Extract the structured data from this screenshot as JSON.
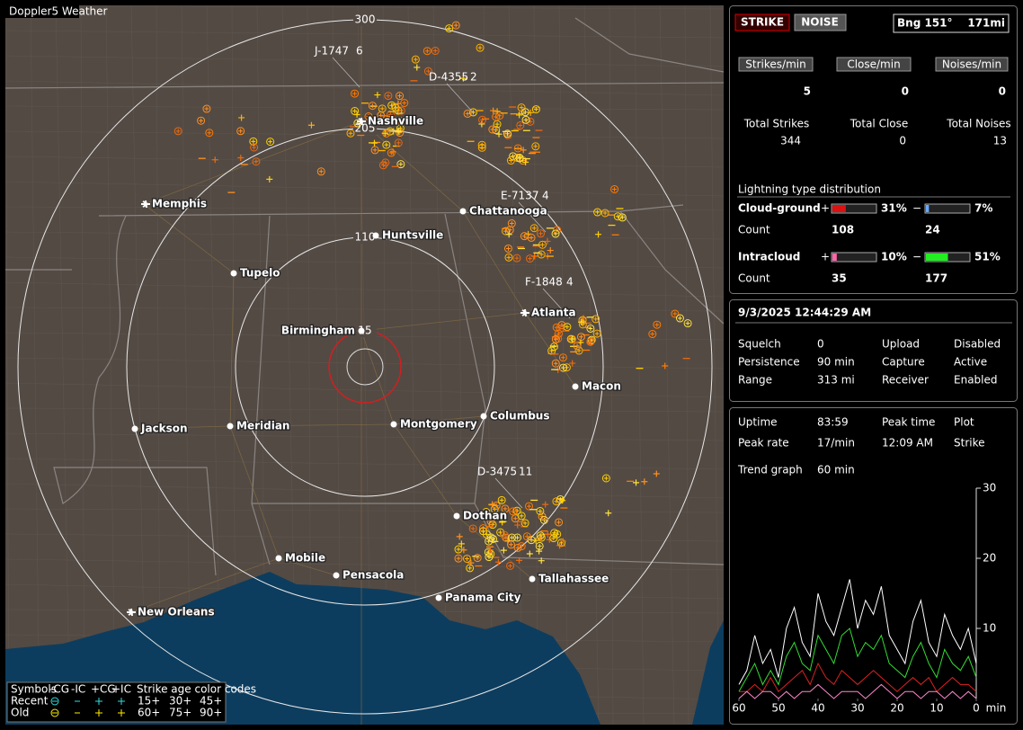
{
  "app_title": "Doppler5 Weather",
  "map": {
    "rings": [
      {
        "label": "300"
      },
      {
        "label": "205"
      },
      {
        "label": "110"
      },
      {
        "label": "15"
      }
    ],
    "cities": [
      {
        "name": "Nashville"
      },
      {
        "name": "Memphis"
      },
      {
        "name": "Chattanooga"
      },
      {
        "name": "Huntsville"
      },
      {
        "name": "Tupelo"
      },
      {
        "name": "Atlanta"
      },
      {
        "name": "Birmingham"
      },
      {
        "name": "Macon"
      },
      {
        "name": "Jackson"
      },
      {
        "name": "Meridian"
      },
      {
        "name": "Montgomery"
      },
      {
        "name": "Columbus"
      },
      {
        "name": "Dothan"
      },
      {
        "name": "Mobile"
      },
      {
        "name": "Pensacola"
      },
      {
        "name": "Tallahassee"
      },
      {
        "name": "Panama City"
      },
      {
        "name": "New Orleans"
      }
    ],
    "cells": [
      {
        "id": "J-1747",
        "count": 6
      },
      {
        "id": "D-4355",
        "count": 2
      },
      {
        "id": "E-7137",
        "count": 4
      },
      {
        "id": "F-1848",
        "count": 4
      },
      {
        "id": "D-3475",
        "count": 11
      }
    ],
    "legend": {
      "title": "Symbols",
      "columns": [
        "-CG",
        "-IC",
        "+CG",
        "+IC"
      ],
      "age_title": "Strike age color codes",
      "rows": [
        {
          "label": "Recent",
          "ages": [
            "15+",
            "30+",
            "45+"
          ]
        },
        {
          "label": "Old",
          "ages": [
            "60+",
            "75+",
            "90+"
          ]
        }
      ]
    }
  },
  "panel": {
    "strike_button": "STRIKE",
    "noise_button": "NOISE",
    "bearing": "Bng 151°",
    "distance": "171mi",
    "rates": [
      {
        "label": "Strikes/min",
        "value": 5
      },
      {
        "label": "Close/min",
        "value": 0
      },
      {
        "label": "Noises/min",
        "value": 0
      }
    ],
    "totals": [
      {
        "label": "Total Strikes",
        "value": 344
      },
      {
        "label": "Total Close",
        "value": 0
      },
      {
        "label": "Total Noises",
        "value": 13
      }
    ],
    "distribution": {
      "title": "Lightning type distribution",
      "count_label": "Count",
      "plus": "+",
      "minus": "−",
      "rows": [
        {
          "label": "Cloud-ground",
          "pos_pct": 31,
          "pos_label": "31%",
          "neg_pct": 7,
          "neg_label": "7%",
          "pos_count": 108,
          "neg_count": 24
        },
        {
          "label": "Intracloud",
          "pos_pct": 10,
          "pos_label": "10%",
          "neg_pct": 51,
          "neg_label": "51%",
          "pos_count": 35,
          "neg_count": 177
        }
      ]
    }
  },
  "status": {
    "datetime": "9/3/2025 12:44:29 AM",
    "items": [
      {
        "label": "Squelch",
        "value": 0
      },
      {
        "label": "Persistence",
        "value": "90 min"
      },
      {
        "label": "Range",
        "value": "313 mi"
      },
      {
        "label": "Upload",
        "value": "Disabled"
      },
      {
        "label": "Capture",
        "value": "Active"
      },
      {
        "label": "Receiver",
        "value": "Enabled"
      }
    ]
  },
  "stats": {
    "items": [
      {
        "label": "Uptime",
        "value": "83:59"
      },
      {
        "label": "Peak rate",
        "value": "17/min"
      },
      {
        "label": "Peak time",
        "value": "12:09 AM"
      },
      {
        "label": "Plot",
        "value": "Strike"
      },
      {
        "label": "Trend graph",
        "value": "60 min"
      }
    ]
  },
  "chart_data": {
    "type": "line",
    "x_unit": "min",
    "x": [
      60,
      58,
      56,
      54,
      52,
      50,
      48,
      46,
      44,
      42,
      40,
      38,
      36,
      34,
      32,
      30,
      28,
      26,
      24,
      22,
      20,
      18,
      16,
      14,
      12,
      10,
      8,
      6,
      4,
      2,
      0
    ],
    "xlim": [
      60,
      0
    ],
    "xticks": [
      60,
      50,
      40,
      30,
      20,
      10,
      0
    ],
    "ylim": [
      0,
      30
    ],
    "yticks": [
      10,
      20,
      30
    ],
    "series": [
      {
        "color": "#ffffff",
        "values": [
          2,
          4,
          9,
          5,
          7,
          3,
          10,
          13,
          8,
          6,
          15,
          11,
          9,
          13,
          17,
          10,
          14,
          12,
          16,
          9,
          7,
          5,
          11,
          14,
          8,
          6,
          12,
          9,
          7,
          10,
          5
        ]
      },
      {
        "color": "#33dd33",
        "values": [
          1,
          3,
          5,
          2,
          4,
          2,
          6,
          8,
          5,
          4,
          9,
          7,
          5,
          9,
          10,
          6,
          8,
          7,
          9,
          5,
          4,
          3,
          6,
          8,
          5,
          3,
          7,
          5,
          4,
          6,
          3
        ]
      },
      {
        "color": "#dd2222",
        "values": [
          1,
          1,
          2,
          1,
          3,
          1,
          2,
          3,
          4,
          2,
          5,
          3,
          2,
          4,
          3,
          2,
          3,
          4,
          3,
          2,
          1,
          2,
          3,
          2,
          3,
          1,
          2,
          3,
          2,
          2,
          1
        ]
      },
      {
        "color": "#ff88cc",
        "values": [
          0,
          1,
          0,
          1,
          1,
          0,
          1,
          0,
          1,
          1,
          2,
          1,
          0,
          1,
          1,
          1,
          0,
          1,
          2,
          1,
          0,
          1,
          1,
          0,
          1,
          1,
          0,
          1,
          0,
          1,
          0
        ]
      }
    ]
  }
}
